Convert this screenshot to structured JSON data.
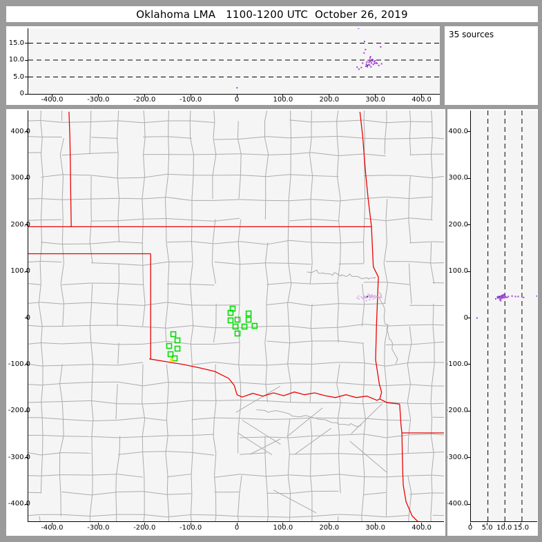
{
  "title": "Oklahoma LMA   1100-1200 UTC  October 26, 2019",
  "info_box": {
    "label": "35 sources"
  },
  "colors": {
    "frame_gray": "#9b9b9b",
    "panel_bg": "#ffffff",
    "plot_bg": "#f5f5f5",
    "county_line": "#ababab",
    "state_border": "#ee0000",
    "station_green": "#00dd00",
    "yellow_marker": "#e6e600",
    "source_purple": "#a43bd6",
    "source_purple_map": "#d9b0e6",
    "source_dark": "#32329b",
    "source_cyan": "#2ba0d2",
    "dashed_line": "#000000"
  },
  "chart_data": {
    "type": "scatter",
    "title": "Oklahoma LMA   1100-1200 UTC  October 26, 2019",
    "annotation": "35 sources",
    "source_count": 35,
    "panels": [
      {
        "id": "altitude-vs-east",
        "x_axis": "east_km",
        "y_axis": "altitude_km"
      },
      {
        "id": "plan-view",
        "x_axis": "east_km",
        "y_axis": "north_km"
      },
      {
        "id": "altitude-vs-north",
        "x_axis": "altitude_km",
        "y_axis": "north_km"
      }
    ],
    "axes": {
      "east_km": {
        "range": [
          -453,
          447
        ],
        "tick_values": [
          -400,
          -300,
          -200,
          -100,
          0,
          100,
          200,
          300,
          400
        ],
        "tick_labels": [
          "-400.0",
          "-300.0",
          "-200.0",
          "-100.0",
          "0",
          "100.0",
          "200.0",
          "300.0",
          "400.0"
        ]
      },
      "north_km": {
        "range": [
          -437,
          446
        ],
        "tick_values": [
          400,
          300,
          200,
          100,
          0,
          -100,
          -200,
          -300,
          -400
        ],
        "tick_labels": [
          "400.0",
          "300.0",
          "200.0",
          "100.0",
          "0",
          "-100.0",
          "-200.0",
          "-300.0",
          "-400.0"
        ]
      },
      "altitude_km": {
        "range": [
          0,
          19.5
        ],
        "tick_values": [
          0,
          5,
          10,
          15
        ],
        "tick_labels": [
          "0",
          "5.0",
          "10.0",
          "15.0"
        ],
        "dashed_gridlines": [
          5,
          10,
          15
        ]
      }
    },
    "sources_xyz": [
      [
        262,
        47,
        19.4
      ],
      [
        275,
        44,
        15.5
      ],
      [
        277,
        46,
        13.1
      ],
      [
        274,
        47,
        12.1
      ],
      [
        288,
        46,
        11.0
      ],
      [
        287,
        44,
        10.6
      ],
      [
        293,
        47,
        10.0
      ],
      [
        292,
        45,
        10.2
      ],
      [
        298,
        43,
        9.8
      ],
      [
        287,
        48,
        9.6
      ],
      [
        296,
        45,
        9.5
      ],
      [
        280,
        44,
        9.4
      ],
      [
        285,
        49,
        9.3
      ],
      [
        290,
        47,
        9.1
      ],
      [
        271,
        42,
        9.1
      ],
      [
        300,
        46,
        9.2
      ],
      [
        302,
        45,
        9.0
      ],
      [
        297,
        48,
        9.0
      ],
      [
        312,
        44,
        8.9
      ],
      [
        286,
        39,
        8.5
      ],
      [
        284,
        46,
        8.6
      ],
      [
        294,
        41,
        8.7
      ],
      [
        279,
        37,
        8.8
      ],
      [
        283,
        51,
        9.9
      ],
      [
        291,
        50,
        9.7
      ],
      [
        278,
        43,
        8.2
      ],
      [
        281,
        46,
        8.0,
        "cyan"
      ],
      [
        289,
        44,
        8.0
      ],
      [
        268,
        45,
        7.8
      ],
      [
        259,
        43,
        7.9
      ],
      [
        263,
        41,
        7.3
      ],
      [
        306,
        44,
        8.4
      ],
      [
        310,
        46,
        13.9
      ],
      [
        281,
        46,
        8.4,
        "dark"
      ],
      [
        -1,
        0,
        1.8
      ]
    ],
    "stations_xy": [
      [
        -10.5,
        20
      ],
      [
        -15,
        11
      ],
      [
        0,
        -3.7
      ],
      [
        -15,
        -5.2
      ],
      [
        -4.5,
        -18.5
      ],
      [
        0,
        -33.4
      ],
      [
        15,
        -18.5
      ],
      [
        24,
        9.6
      ],
      [
        24,
        -3.7
      ],
      [
        37,
        -17
      ],
      [
        -139,
        -34.9
      ],
      [
        -130,
        -48.2
      ],
      [
        -148,
        -60.1
      ],
      [
        -130,
        -66
      ],
      [
        -145,
        -77.9
      ],
      [
        -136,
        -86.8
      ]
    ],
    "yellow_marker_xy": [
      -143,
      -90
    ]
  }
}
